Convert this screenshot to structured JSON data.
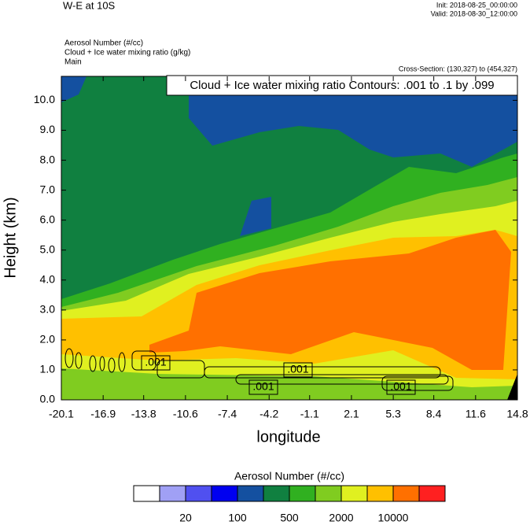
{
  "chart_data": {
    "type": "contour",
    "title": "W-E at 10S",
    "init": "Init: 2018-08-25_00:00:00",
    "valid": "Valid: 2018-08-30_12:00:00",
    "field_labels": [
      "Aerosol Number   (#/cc)",
      "Cloud + Ice water mixing ratio   (g/kg)",
      "Main"
    ],
    "cross_section": "Cross-Section: (130,327) to (454,327)",
    "contour_info": "Cloud + Ice water mixing ratio Contours: .001 to .1 by .099",
    "contour_labels": [
      ".001",
      ".001",
      ".001",
      ".001"
    ],
    "xlabel": "longitude",
    "ylabel": "Height (km)",
    "xlim": [
      -20.1,
      14.8
    ],
    "xticks": [
      -20.1,
      -16.9,
      -13.8,
      -10.6,
      -7.4,
      -4.2,
      -1.1,
      2.1,
      5.3,
      8.4,
      11.6,
      14.8
    ],
    "ylim": [
      0,
      10.8
    ],
    "yticks": [
      {
        "value": 0,
        "label": "0.0"
      },
      {
        "value": 1,
        "label": "1.0"
      },
      {
        "value": 2,
        "label": "2.0"
      },
      {
        "value": 3,
        "label": "3.0"
      },
      {
        "value": 4,
        "label": "4.0"
      },
      {
        "value": 5,
        "label": "5.0"
      },
      {
        "value": 6,
        "label": "6.0"
      },
      {
        "value": 7,
        "label": "7.0"
      },
      {
        "value": 8,
        "label": "8.0"
      },
      {
        "value": 9,
        "label": "9.0"
      },
      {
        "value": 10,
        "label": "10.0"
      }
    ],
    "colorbar": {
      "title": "Aerosol Number  (#/cc)",
      "colors": [
        "#ffffff",
        "#a0a0f5",
        "#5050f0",
        "#0000f0",
        "#1450a0",
        "#108040",
        "#30b020",
        "#80cc20",
        "#e0f020",
        "#ffc000",
        "#ff7000",
        "#ff2020"
      ],
      "ticks": [
        20,
        100,
        500,
        2000,
        10000
      ]
    }
  }
}
